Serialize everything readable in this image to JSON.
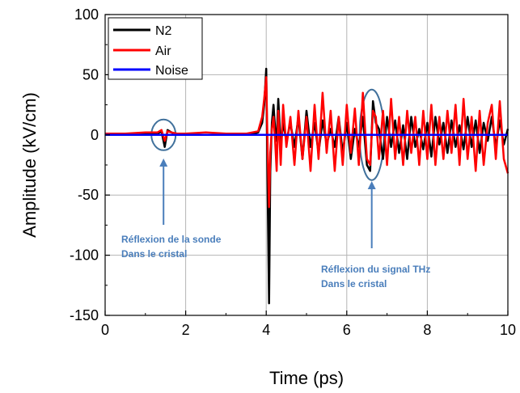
{
  "chart_data": {
    "type": "line",
    "title": "",
    "xlabel": "Time (ps)",
    "ylabel": "Amplitude (kV/cm)",
    "xlim": [
      0,
      10
    ],
    "ylim": [
      -150,
      100
    ],
    "xticks": [
      0,
      2,
      4,
      6,
      8,
      10
    ],
    "yticks": [
      -150,
      -100,
      -50,
      0,
      50,
      100
    ],
    "grid": true,
    "legend_position": "top-left",
    "series": [
      {
        "name": "N2",
        "color": "#000000",
        "x": [
          0,
          0.5,
          1.0,
          1.3,
          1.4,
          1.48,
          1.55,
          1.65,
          1.8,
          2.0,
          2.5,
          3.0,
          3.5,
          3.8,
          3.9,
          3.95,
          4.0,
          4.04,
          4.07,
          4.1,
          4.14,
          4.18,
          4.22,
          4.26,
          4.3,
          4.36,
          4.42,
          4.5,
          4.6,
          4.7,
          4.8,
          4.9,
          5.0,
          5.1,
          5.2,
          5.3,
          5.4,
          5.5,
          5.6,
          5.7,
          5.8,
          5.9,
          6.0,
          6.1,
          6.2,
          6.3,
          6.4,
          6.5,
          6.58,
          6.65,
          6.72,
          6.8,
          6.9,
          7.0,
          7.1,
          7.2,
          7.3,
          7.4,
          7.5,
          7.6,
          7.7,
          7.8,
          7.9,
          8.0,
          8.1,
          8.2,
          8.3,
          8.4,
          8.5,
          8.6,
          8.7,
          8.8,
          8.9,
          9.0,
          9.1,
          9.2,
          9.3,
          9.4,
          9.5,
          9.6,
          9.7,
          9.8,
          9.9,
          10.0
        ],
        "y": [
          0,
          0,
          1,
          1,
          3,
          -10,
          4,
          2,
          0,
          0,
          0,
          0,
          0,
          2,
          10,
          25,
          55,
          -60,
          -140,
          -30,
          10,
          25,
          5,
          -5,
          30,
          -10,
          10,
          -5,
          10,
          -10,
          15,
          -20,
          20,
          -10,
          10,
          -15,
          12,
          -8,
          5,
          -10,
          15,
          -15,
          10,
          -20,
          5,
          -10,
          15,
          -25,
          -30,
          28,
          10,
          5,
          -20,
          15,
          -10,
          12,
          -15,
          8,
          -20,
          15,
          -10,
          5,
          -12,
          10,
          -18,
          15,
          -8,
          10,
          -15,
          12,
          -10,
          8,
          -12,
          15,
          -10,
          12,
          -15,
          10,
          -5,
          15,
          -10,
          12,
          -8,
          5
        ]
      },
      {
        "name": "Air",
        "color": "#FF0000",
        "x": [
          0,
          0.5,
          1.0,
          1.3,
          1.4,
          1.48,
          1.55,
          1.65,
          1.8,
          2.0,
          2.5,
          3.0,
          3.5,
          3.8,
          3.9,
          3.95,
          4.0,
          4.04,
          4.07,
          4.1,
          4.14,
          4.18,
          4.22,
          4.26,
          4.3,
          4.36,
          4.42,
          4.5,
          4.6,
          4.7,
          4.8,
          4.9,
          5.0,
          5.1,
          5.2,
          5.3,
          5.4,
          5.5,
          5.6,
          5.7,
          5.8,
          5.9,
          6.0,
          6.1,
          6.2,
          6.3,
          6.4,
          6.5,
          6.58,
          6.65,
          6.72,
          6.8,
          6.9,
          7.0,
          7.1,
          7.2,
          7.3,
          7.4,
          7.5,
          7.6,
          7.7,
          7.8,
          7.9,
          8.0,
          8.1,
          8.2,
          8.3,
          8.4,
          8.5,
          8.6,
          8.7,
          8.8,
          8.9,
          9.0,
          9.1,
          9.2,
          9.3,
          9.4,
          9.5,
          9.6,
          9.7,
          9.8,
          9.9,
          10.0
        ],
        "y": [
          1,
          1,
          2,
          2,
          4,
          -5,
          3,
          2,
          1,
          1,
          2,
          1,
          1,
          3,
          15,
          30,
          48,
          -20,
          -60,
          -15,
          5,
          15,
          -5,
          -30,
          20,
          -25,
          25,
          -10,
          15,
          -25,
          20,
          -20,
          15,
          -30,
          25,
          -20,
          35,
          -15,
          20,
          -30,
          15,
          -25,
          25,
          -15,
          22,
          -25,
          35,
          -20,
          -25,
          20,
          15,
          -20,
          20,
          -25,
          30,
          -20,
          15,
          -25,
          20,
          -15,
          15,
          -25,
          20,
          -20,
          25,
          -25,
          15,
          -20,
          20,
          -15,
          25,
          -25,
          30,
          -20,
          15,
          -30,
          20,
          -25,
          10,
          25,
          -20,
          28,
          -20,
          -32
        ]
      },
      {
        "name": "Noise",
        "color": "#0000FF",
        "x": [
          0,
          10
        ],
        "y": [
          0,
          0
        ]
      }
    ],
    "annotations": [
      {
        "lines": [
          "Réflexion de la sonde",
          "Dans le cristal"
        ],
        "color": "#4A7EBB"
      },
      {
        "lines": [
          "Réflexion du signal THz",
          "Dans le cristal"
        ],
        "color": "#4A7EBB"
      }
    ]
  }
}
